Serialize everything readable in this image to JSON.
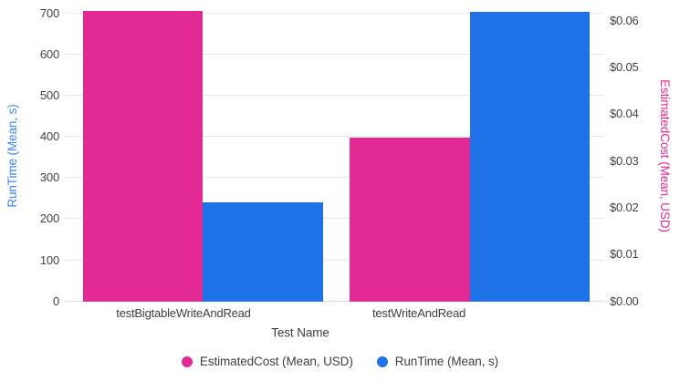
{
  "page": {
    "background": "#ffffff"
  },
  "chart_data": {
    "type": "bar",
    "title": "",
    "categories": [
      "testBigtableWriteAndRead",
      "testWriteAndRead"
    ],
    "xlabel": "Test Name",
    "series": [
      {
        "name": "EstimatedCost (Mean, USD)",
        "axis": "right",
        "color": "#e22994",
        "values": [
          0.062,
          0.035
        ]
      },
      {
        "name": "RunTime (Mean, s)",
        "axis": "left",
        "color": "#1f71e8",
        "values": [
          240,
          703
        ]
      }
    ],
    "left_axis": {
      "label": "RunTime (Mean, s)",
      "label_color": "#4285f4",
      "tick_labels": [
        "0",
        "100",
        "200",
        "300",
        "400",
        "500",
        "600",
        "700"
      ],
      "tick_values": [
        0,
        100,
        200,
        300,
        400,
        500,
        600,
        700
      ],
      "range": [
        0,
        706
      ],
      "gridlines": true
    },
    "right_axis": {
      "label": "EstimatedCost (Mean, USD)",
      "label_color": "#e22994",
      "tick_labels": [
        "$0.00",
        "$0.01",
        "$0.02",
        "$0.03",
        "$0.04",
        "$0.05",
        "$0.06"
      ],
      "tick_values": [
        0,
        0.01,
        0.02,
        0.03,
        0.04,
        0.05,
        0.06
      ],
      "range": [
        0,
        0.062
      ],
      "gridlines": false
    },
    "legend": {
      "position": "bottom",
      "items": [
        "EstimatedCost (Mean, USD)",
        "RunTime (Mean, s)"
      ]
    },
    "colors": {
      "grid": "#e8e8e8",
      "baseline": "#d9dce1",
      "tick_text": "#424242",
      "category_text": "#3c4043"
    }
  }
}
